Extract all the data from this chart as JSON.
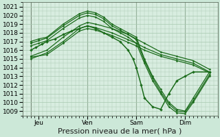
{
  "bg_color": "#cce8d8",
  "plot_bg_color": "#d8ede0",
  "grid_color": "#a8c8b0",
  "line_color": "#1a6b1a",
  "marker_color": "#1a6b1a",
  "xlabel": "Pression niveau de la mer( hPa )",
  "xlabel_fontsize": 8,
  "tick_fontsize": 6.5,
  "ylim": [
    1008.5,
    1021.5
  ],
  "yticks": [
    1009,
    1010,
    1011,
    1012,
    1013,
    1014,
    1015,
    1016,
    1017,
    1018,
    1019,
    1020,
    1021
  ],
  "day_labels": [
    "Jeu",
    "Ven",
    "Sam",
    "Dim"
  ],
  "day_positions": [
    0.5,
    3.5,
    6.5,
    9.5
  ],
  "vline_positions": [
    0.0,
    3.5,
    6.5,
    9.5
  ],
  "xlim": [
    -0.5,
    11.5
  ],
  "series": [
    {
      "x": [
        0,
        0.5,
        1,
        2,
        3,
        3.5,
        4,
        4.5,
        5,
        5.5,
        6,
        6.5,
        7,
        7.5,
        8,
        8.5,
        9,
        9.5,
        10,
        11
      ],
      "y": [
        1017.0,
        1017.3,
        1017.5,
        1019.0,
        1020.2,
        1020.5,
        1020.3,
        1019.8,
        1019.0,
        1018.5,
        1018.0,
        1017.5,
        1015.0,
        1013.0,
        1011.5,
        1010.0,
        1009.2,
        1009.0,
        1010.5,
        1013.5
      ]
    },
    {
      "x": [
        0,
        0.5,
        1,
        2,
        3,
        3.5,
        4,
        4.5,
        5,
        5.5,
        6,
        6.5,
        7,
        7.5,
        8,
        8.5,
        9,
        9.5,
        10,
        11
      ],
      "y": [
        1016.8,
        1017.1,
        1017.4,
        1018.8,
        1020.0,
        1020.3,
        1020.1,
        1019.6,
        1018.8,
        1018.3,
        1017.8,
        1017.2,
        1014.8,
        1012.8,
        1011.2,
        1009.8,
        1009.0,
        1008.9,
        1010.2,
        1013.2
      ]
    },
    {
      "x": [
        0,
        0.5,
        1,
        2,
        3,
        3.5,
        4,
        4.5,
        5,
        5.5,
        6,
        6.5,
        7,
        7.5,
        8,
        8.5,
        9,
        9.5,
        10,
        11
      ],
      "y": [
        1016.5,
        1016.8,
        1017.1,
        1018.5,
        1019.7,
        1020.0,
        1019.8,
        1019.3,
        1018.5,
        1018.0,
        1017.5,
        1016.8,
        1014.5,
        1012.5,
        1011.0,
        1009.5,
        1008.8,
        1008.7,
        1010.0,
        1013.0
      ]
    },
    {
      "x": [
        0,
        1,
        2,
        3,
        3.5,
        4,
        5,
        6,
        6.5,
        7,
        8,
        9,
        10,
        11
      ],
      "y": [
        1015.3,
        1016.0,
        1017.5,
        1018.8,
        1019.2,
        1019.0,
        1018.5,
        1017.8,
        1017.3,
        1016.8,
        1015.8,
        1015.3,
        1014.8,
        1013.8
      ]
    },
    {
      "x": [
        0,
        1,
        2,
        3,
        3.5,
        4,
        5,
        6,
        6.5,
        7,
        8,
        9,
        10,
        11
      ],
      "y": [
        1015.0,
        1015.7,
        1017.0,
        1018.5,
        1018.8,
        1018.6,
        1018.0,
        1017.2,
        1016.8,
        1016.3,
        1015.5,
        1015.0,
        1014.5,
        1013.5
      ]
    },
    {
      "x": [
        0,
        1,
        2,
        3,
        3.5,
        4,
        5,
        6,
        6.5,
        7,
        8,
        9,
        10,
        11
      ],
      "y": [
        1015.2,
        1015.5,
        1016.8,
        1018.2,
        1018.5,
        1018.3,
        1017.7,
        1016.9,
        1016.5,
        1016.0,
        1015.3,
        1014.8,
        1014.3,
        1013.4
      ]
    },
    {
      "x": [
        0,
        0.3,
        0.7,
        1,
        1.5,
        2,
        2.5,
        3,
        3.5,
        4,
        4.5,
        5,
        5.5,
        6,
        6.3,
        6.5,
        6.8,
        7,
        7.5,
        8,
        8.5,
        9,
        9.5,
        10,
        11
      ],
      "y": [
        1016.0,
        1016.3,
        1016.7,
        1017.0,
        1017.3,
        1017.8,
        1018.2,
        1018.5,
        1018.8,
        1018.5,
        1018.0,
        1017.5,
        1017.0,
        1016.0,
        1015.0,
        1014.0,
        1012.0,
        1010.5,
        1009.5,
        1009.2,
        1011.0,
        1012.5,
        1013.0,
        1013.5,
        1013.5
      ]
    }
  ]
}
